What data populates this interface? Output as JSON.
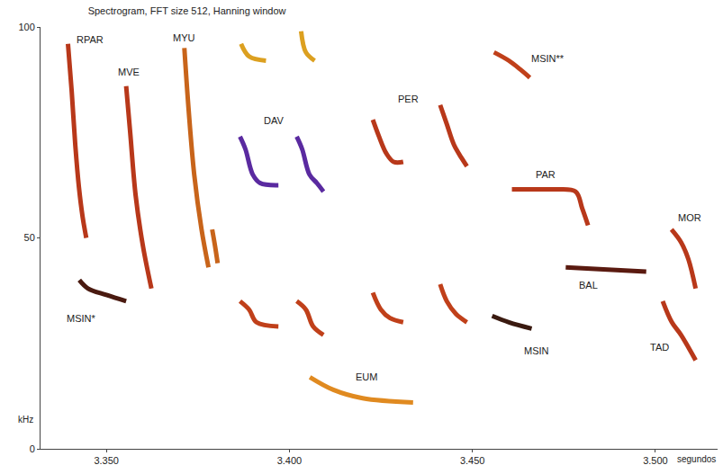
{
  "chart_data": {
    "type": "line",
    "title": "Spectrogram, FFT size 512, Hanning window",
    "xlabel": "segundos",
    "ylabel": "kHz",
    "xlim": [
      3.332,
      3.517
    ],
    "ylim": [
      0,
      100
    ],
    "xticks": [
      {
        "value": 3.35,
        "label": "3.350"
      },
      {
        "value": 3.4,
        "label": "3.400"
      },
      {
        "value": 3.45,
        "label": "3.450"
      },
      {
        "value": 3.5,
        "label": "3.500"
      }
    ],
    "yticks": [
      0,
      50,
      100
    ],
    "grid": false,
    "series": [
      {
        "color": "#b8381a",
        "x": [
          3.3395,
          3.3405,
          3.3415,
          3.3425,
          3.3435,
          3.3445
        ],
        "values": [
          96,
          85,
          72,
          62,
          55,
          50
        ]
      },
      {
        "color": "#4a1a10",
        "x": [
          3.3426,
          3.345,
          3.35,
          3.3554
        ],
        "values": [
          40,
          38,
          36.5,
          35
        ]
      },
      {
        "color": "#b8381a",
        "x": [
          3.3554,
          3.3565,
          3.358,
          3.36,
          3.3623
        ],
        "values": [
          86,
          75,
          60,
          48,
          38
        ]
      },
      {
        "color": "#c8641a",
        "x": [
          3.3713,
          3.3725,
          3.374,
          3.376,
          3.3779
        ],
        "values": [
          95,
          80,
          65,
          52,
          43
        ]
      },
      {
        "color": "#c8641a",
        "x": [
          3.3789,
          3.3797,
          3.3804
        ],
        "values": [
          52,
          48,
          44
        ]
      },
      {
        "color": "#dca020",
        "x": [
          3.3868,
          3.389,
          3.3936
        ],
        "values": [
          96,
          93,
          92
        ]
      },
      {
        "color": "#dca020",
        "x": [
          3.4032,
          3.4045,
          3.4069
        ],
        "values": [
          99,
          94,
          92
        ]
      },
      {
        "color": "#c0401a",
        "x": [
          3.3865,
          3.389,
          3.391,
          3.397
        ],
        "values": [
          35,
          33,
          30,
          29
        ]
      },
      {
        "color": "#5a2aa0",
        "x": [
          3.3865,
          3.388,
          3.39,
          3.392,
          3.397
        ],
        "values": [
          74,
          71,
          65,
          63,
          62.5
        ]
      },
      {
        "color": "#c0401a",
        "x": [
          3.402,
          3.4045,
          3.4065,
          3.4093
        ],
        "values": [
          35,
          33,
          29,
          27
        ]
      },
      {
        "color": "#5a2aa0",
        "x": [
          3.402,
          3.4035,
          3.4055,
          3.4075,
          3.4093
        ],
        "values": [
          74,
          71,
          65,
          63,
          61
        ]
      },
      {
        "color": "#c0401a",
        "x": [
          3.4228,
          3.425,
          3.4275,
          3.4311
        ],
        "values": [
          37,
          33,
          31,
          30
        ]
      },
      {
        "color": "#b8381a",
        "x": [
          3.4228,
          3.4245,
          3.4265,
          3.4285,
          3.4311
        ],
        "values": [
          78,
          74,
          70,
          68,
          68
        ]
      },
      {
        "color": "#c0401a",
        "x": [
          3.4412,
          3.443,
          3.4455,
          3.4485
        ],
        "values": [
          39,
          35,
          32,
          30
        ]
      },
      {
        "color": "#b8381a",
        "x": [
          3.4412,
          3.443,
          3.445,
          3.447,
          3.4485
        ],
        "values": [
          81.5,
          77,
          72,
          69,
          67
        ]
      },
      {
        "color": "#c0401a",
        "x": [
          3.4559,
          3.46,
          3.463,
          3.4657
        ],
        "values": [
          94,
          92,
          90,
          88
        ]
      },
      {
        "color": "#b8381a",
        "x": [
          3.4608,
          3.465,
          3.472,
          3.4782,
          3.48,
          3.4816
        ],
        "values": [
          61.5,
          61.5,
          61.5,
          61,
          57,
          53
        ]
      },
      {
        "color": "#3a1a10",
        "x": [
          3.4554,
          3.46,
          3.4662
        ],
        "values": [
          31.5,
          30,
          28.5
        ]
      },
      {
        "color": "#5a1a10",
        "x": [
          3.4755,
          3.487,
          3.4975
        ],
        "values": [
          43,
          42.5,
          42
        ]
      },
      {
        "color": "#b8381a",
        "x": [
          3.5044,
          3.507,
          3.509,
          3.511
        ],
        "values": [
          52,
          49,
          45,
          38
        ]
      },
      {
        "color": "#b8381a",
        "x": [
          3.502,
          3.5045,
          3.507,
          3.511
        ],
        "values": [
          35,
          30,
          27,
          21
        ]
      },
      {
        "color": "#e08a20",
        "x": [
          3.4056,
          3.412,
          3.42,
          3.4338
        ],
        "values": [
          17,
          14,
          12,
          11
        ]
      }
    ],
    "annotations": [
      {
        "text": "RPAR",
        "x": 3.3456,
        "y": 97
      },
      {
        "text": "MVE",
        "x": 3.3561,
        "y": 89.4
      },
      {
        "text": "MYU",
        "x": 3.3713,
        "y": 97.5
      },
      {
        "text": "DAV",
        "x": 3.3958,
        "y": 77.8
      },
      {
        "text": "PER",
        "x": 3.4326,
        "y": 83
      },
      {
        "text": "MSIN**",
        "x": 3.4706,
        "y": 92.6
      },
      {
        "text": "PAR",
        "x": 3.4701,
        "y": 65
      },
      {
        "text": "BAL",
        "x": 3.4816,
        "y": 38.8
      },
      {
        "text": "MOR",
        "x": 3.5093,
        "y": 54.9
      },
      {
        "text": "MSIN*",
        "x": 3.3431,
        "y": 31
      },
      {
        "text": "MSIN",
        "x": 3.4676,
        "y": 23.3
      },
      {
        "text": "EUM",
        "x": 3.4211,
        "y": 17
      },
      {
        "text": "TAD",
        "x": 3.5012,
        "y": 24
      }
    ]
  }
}
